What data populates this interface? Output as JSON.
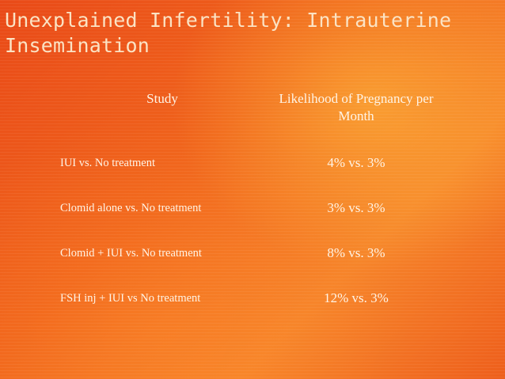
{
  "title": "Unexplained Infertility: Intrauterine Insemination",
  "table": {
    "headers": {
      "study": "Study",
      "likelihood": "Likelihood of Pregnancy per Month"
    },
    "rows": [
      {
        "study": "IUI vs. No treatment",
        "likelihood": "4% vs. 3%"
      },
      {
        "study": "Clomid alone vs. No treatment",
        "likelihood": "3% vs. 3%"
      },
      {
        "study": "Clomid + IUI vs. No treatment",
        "likelihood": "8% vs. 3%"
      },
      {
        "study": "FSH inj + IUI vs No treatment",
        "likelihood": "12% vs. 3%"
      }
    ]
  }
}
